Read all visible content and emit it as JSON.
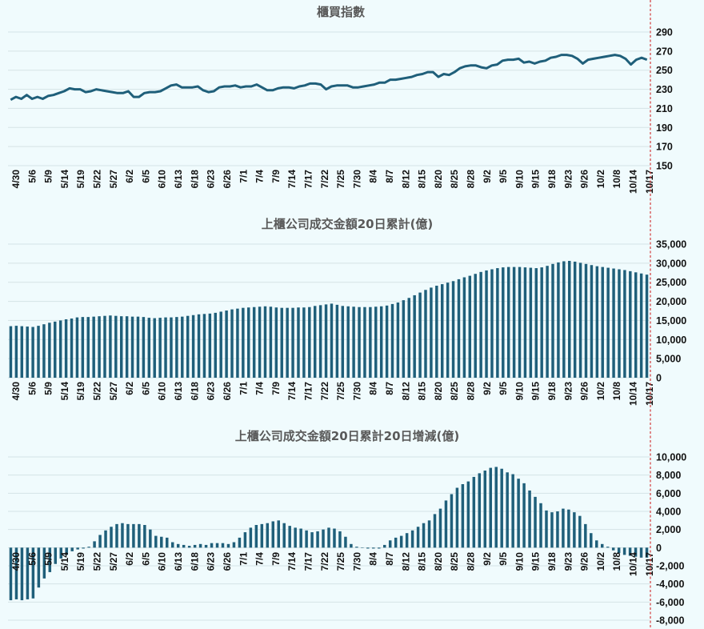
{
  "x_ticks": [
    "4/30",
    "5/6",
    "5/9",
    "5/14",
    "5/19",
    "5/22",
    "5/27",
    "6/2",
    "6/5",
    "6/10",
    "6/13",
    "6/18",
    "6/23",
    "6/26",
    "7/1",
    "7/4",
    "7/9",
    "7/14",
    "7/17",
    "7/22",
    "7/25",
    "7/30",
    "8/4",
    "8/7",
    "8/12",
    "8/15",
    "8/20",
    "8/25",
    "8/28",
    "9/2",
    "9/5",
    "9/10",
    "9/15",
    "9/18",
    "9/23",
    "9/26",
    "10/2",
    "10/8",
    "10/14",
    "10/17"
  ],
  "colors": {
    "series": "#1f5f7a",
    "grid": "#d5e3e6",
    "marker_line": "#d23a3a",
    "background": "#f0fbfd"
  },
  "chart_data": [
    {
      "type": "line",
      "title": "櫃買指數",
      "ylim": [
        150,
        290
      ],
      "yticks": [
        150,
        170,
        190,
        210,
        230,
        250,
        270,
        290
      ],
      "y_axis_side": "right",
      "grid": true,
      "series": [
        {
          "values": [
            219,
            222,
            220,
            224,
            220,
            222,
            220,
            223,
            224,
            226,
            228,
            231,
            230,
            230,
            227,
            228,
            230,
            229,
            228,
            227,
            226,
            226,
            228,
            222,
            222,
            226,
            227,
            227,
            228,
            231,
            234,
            235,
            232,
            232,
            232,
            233,
            229,
            227,
            228,
            232,
            233,
            233,
            234,
            232,
            233,
            233,
            235,
            232,
            229,
            229,
            231,
            232,
            232,
            231,
            233,
            234,
            236,
            236,
            235,
            230,
            233,
            234,
            234,
            234,
            232,
            232,
            233,
            234,
            235,
            237,
            237,
            240,
            240,
            241,
            242,
            243,
            245,
            246,
            248,
            248,
            243,
            246,
            245,
            248,
            252,
            254,
            255,
            255,
            253,
            252,
            255,
            256,
            260,
            261,
            261,
            262,
            258,
            259,
            257,
            259,
            260,
            263,
            264,
            266,
            266,
            265,
            262,
            257,
            261,
            262,
            263,
            264,
            265,
            266,
            265,
            262,
            256,
            261,
            263,
            261
          ]
        }
      ]
    },
    {
      "type": "bar",
      "title": "上櫃公司成交金額20日累計(億)",
      "ylim": [
        0,
        35000
      ],
      "yticks": [
        0,
        5000,
        10000,
        15000,
        20000,
        25000,
        30000,
        35000
      ],
      "y_axis_side": "right",
      "grid": true,
      "series": [
        {
          "values": [
            13500,
            13600,
            13500,
            13400,
            13300,
            13600,
            14000,
            14400,
            14700,
            15000,
            15300,
            15500,
            15800,
            15900,
            15900,
            16000,
            16100,
            16200,
            16300,
            16200,
            16100,
            16100,
            16000,
            16000,
            15900,
            15700,
            15600,
            15700,
            15800,
            15800,
            15900,
            16000,
            16200,
            16400,
            16600,
            16700,
            16800,
            17000,
            17300,
            17600,
            17900,
            18100,
            18300,
            18400,
            18500,
            18600,
            18700,
            18600,
            18400,
            18300,
            18300,
            18300,
            18400,
            18400,
            18500,
            18800,
            19000,
            19200,
            19400,
            19100,
            18800,
            18700,
            18600,
            18500,
            18500,
            18500,
            18600,
            18700,
            18900,
            19300,
            19700,
            20300,
            20900,
            21600,
            22300,
            23000,
            23600,
            24100,
            24500,
            24900,
            25300,
            25800,
            26300,
            26700,
            27200,
            27700,
            28100,
            28400,
            28700,
            28900,
            29000,
            29000,
            29000,
            28900,
            28800,
            28700,
            28900,
            29300,
            29800,
            30200,
            30500,
            30600,
            30400,
            30100,
            29800,
            29500,
            29200,
            29000,
            28800,
            28600,
            28400,
            28200,
            27900,
            27600,
            27300,
            27000
          ]
        }
      ]
    },
    {
      "type": "bar",
      "title": "上櫃公司成交金額20日累計20日增減(億)",
      "ylim": [
        -8000,
        10000
      ],
      "yticks": [
        -8000,
        -6000,
        -4000,
        -2000,
        0,
        2000,
        4000,
        6000,
        8000,
        10000
      ],
      "y_axis_side": "right",
      "grid": true,
      "series": [
        {
          "values": [
            -5800,
            -5700,
            -5800,
            -5700,
            -5600,
            -4400,
            -3400,
            -2700,
            -1800,
            -1200,
            -800,
            -400,
            -200,
            -100,
            100,
            700,
            1400,
            1900,
            2300,
            2600,
            2700,
            2600,
            2600,
            2600,
            2500,
            2000,
            1300,
            1200,
            1100,
            600,
            400,
            300,
            200,
            300,
            400,
            300,
            500,
            500,
            500,
            400,
            600,
            1100,
            1700,
            2200,
            2500,
            2600,
            2700,
            2900,
            3000,
            2700,
            2400,
            2200,
            2100,
            1900,
            1700,
            1800,
            2000,
            2200,
            2100,
            1800,
            1200,
            400,
            100,
            0,
            -100,
            -100,
            -100,
            300,
            800,
            1100,
            1300,
            1600,
            1900,
            2300,
            2700,
            3000,
            3700,
            4300,
            5200,
            5900,
            6600,
            7000,
            7300,
            7800,
            8200,
            8500,
            8800,
            8900,
            8700,
            8300,
            8100,
            7600,
            7100,
            6300,
            5600,
            4900,
            4100,
            3900,
            4000,
            4300,
            4200,
            3900,
            3500,
            2600,
            1600,
            800,
            400,
            100,
            -300,
            -600,
            -800,
            -900,
            -1000,
            -1100,
            -1100
          ]
        }
      ]
    }
  ]
}
